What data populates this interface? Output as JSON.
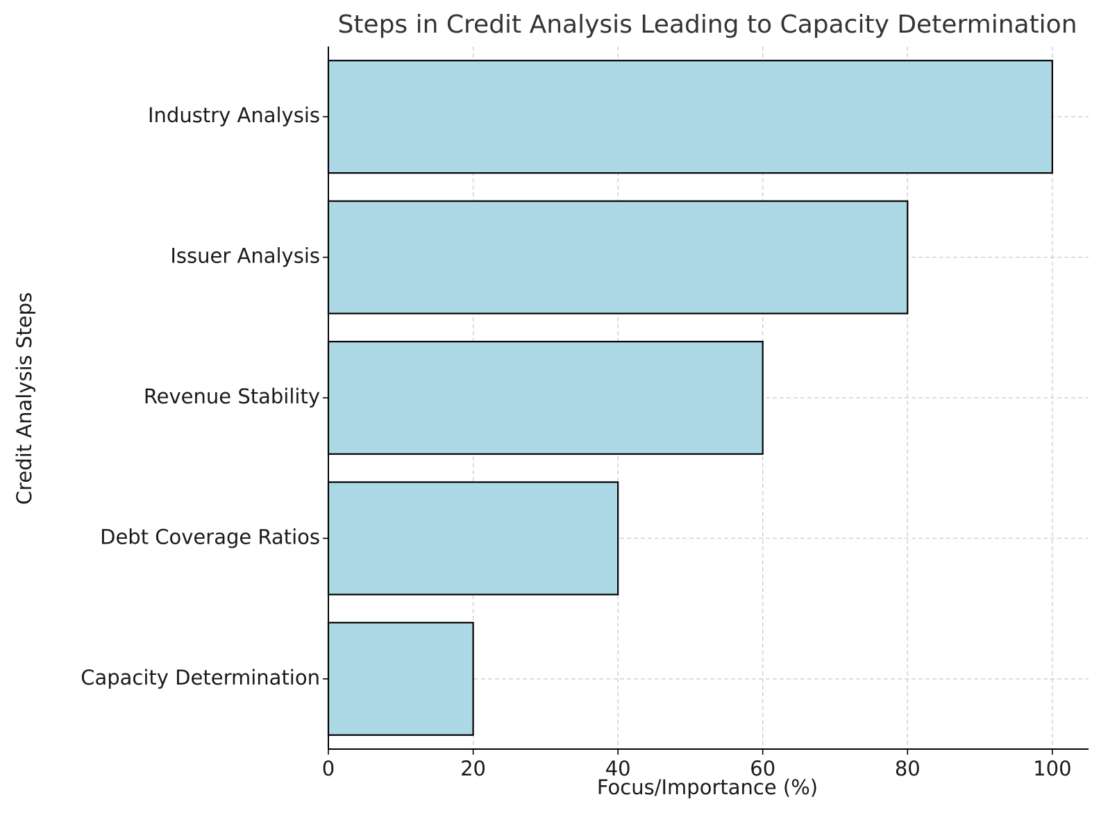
{
  "chart_data": {
    "type": "bar",
    "orientation": "horizontal",
    "title": "Steps in Credit Analysis Leading to Capacity Determination",
    "xlabel": "Focus/Importance (%)",
    "ylabel": "Credit Analysis Steps",
    "categories": [
      "Industry Analysis",
      "Issuer Analysis",
      "Revenue Stability",
      "Debt Coverage Ratios",
      "Capacity Determination"
    ],
    "values": [
      100,
      80,
      60,
      40,
      20
    ],
    "xlim": [
      0,
      105
    ],
    "xticks": [
      0,
      20,
      40,
      60,
      80,
      100
    ],
    "grid": true,
    "bar_color": "#add8e6",
    "edge_color": "#000000",
    "grid_color": "#cccccc",
    "text_color": "#333333"
  }
}
